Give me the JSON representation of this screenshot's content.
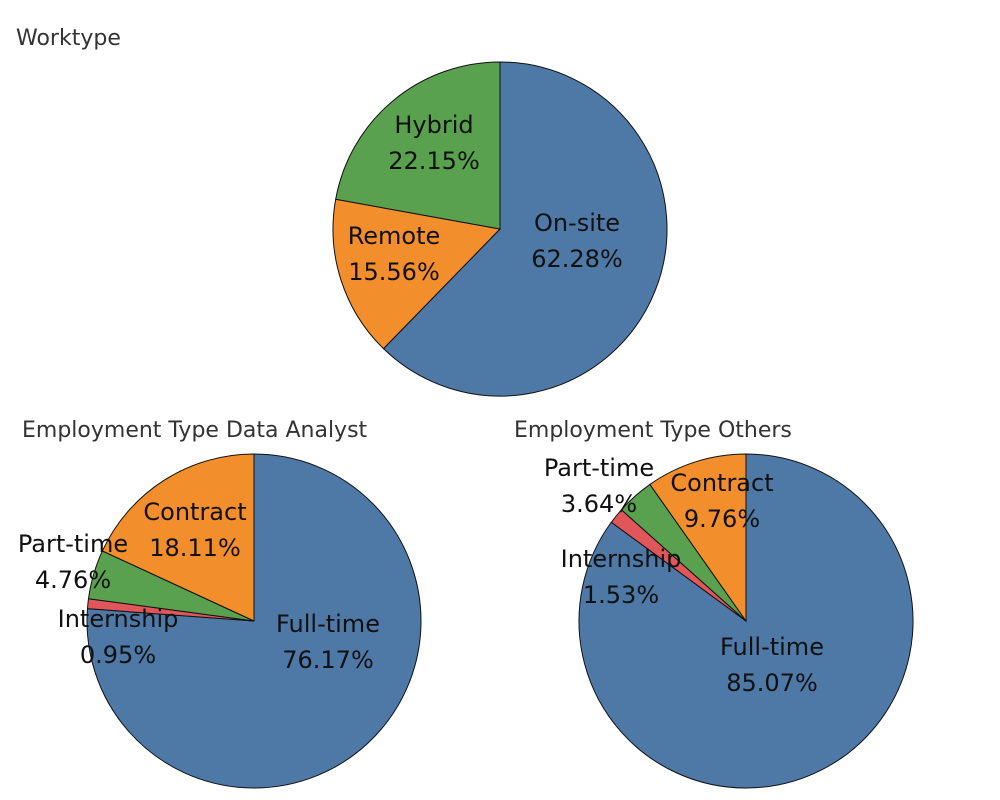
{
  "chart_data": [
    {
      "type": "pie",
      "title": "Worktype",
      "slices": [
        {
          "label": "On-site",
          "value": 62.28,
          "display": "62.28%",
          "color": "#4e79a7"
        },
        {
          "label": "Remote",
          "value": 15.56,
          "display": "15.56%",
          "color": "#f28e2b"
        },
        {
          "label": "Hybrid",
          "value": 22.15,
          "display": "22.15%",
          "color": "#59a14f"
        }
      ]
    },
    {
      "type": "pie",
      "title": "Employment Type Data Analyst",
      "slices": [
        {
          "label": "Full-time",
          "value": 76.17,
          "display": "76.17%",
          "color": "#4e79a7"
        },
        {
          "label": "Internship",
          "value": 0.95,
          "display": "0.95%",
          "color": "#e15759"
        },
        {
          "label": "Part-time",
          "value": 4.76,
          "display": "4.76%",
          "color": "#59a14f"
        },
        {
          "label": "Contract",
          "value": 18.11,
          "display": "18.11%",
          "color": "#f28e2b"
        }
      ]
    },
    {
      "type": "pie",
      "title": "Employment Type Others",
      "slices": [
        {
          "label": "Full-time",
          "value": 85.07,
          "display": "85.07%",
          "color": "#4e79a7"
        },
        {
          "label": "Internship",
          "value": 1.53,
          "display": "1.53%",
          "color": "#e15759"
        },
        {
          "label": "Part-time",
          "value": 3.64,
          "display": "3.64%",
          "color": "#59a14f"
        },
        {
          "label": "Contract",
          "value": 9.76,
          "display": "9.76%",
          "color": "#f28e2b"
        }
      ]
    }
  ]
}
